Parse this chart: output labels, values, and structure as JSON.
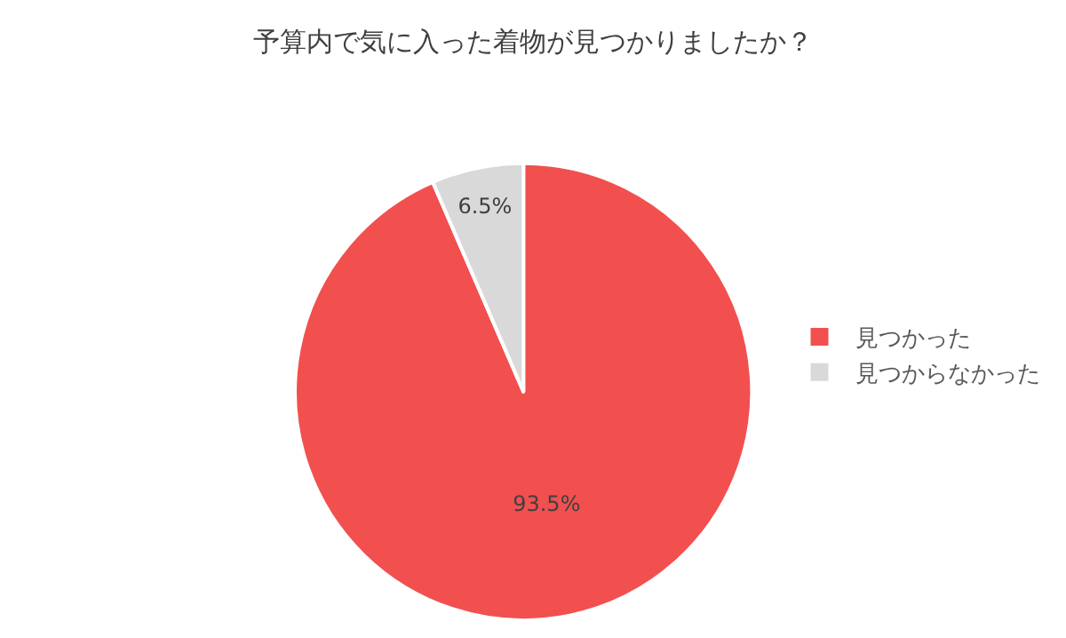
{
  "chart_data": {
    "type": "pie",
    "title": "予算内で気に入った着物が見つかりましたか？",
    "categories": [
      "見つかった",
      "見つからなかった"
    ],
    "values": [
      93.5,
      6.5
    ],
    "colors": [
      "#f24f4f",
      "#d9d9d9"
    ],
    "value_labels": [
      "93.5%",
      "6.5%"
    ],
    "legend": "right"
  }
}
